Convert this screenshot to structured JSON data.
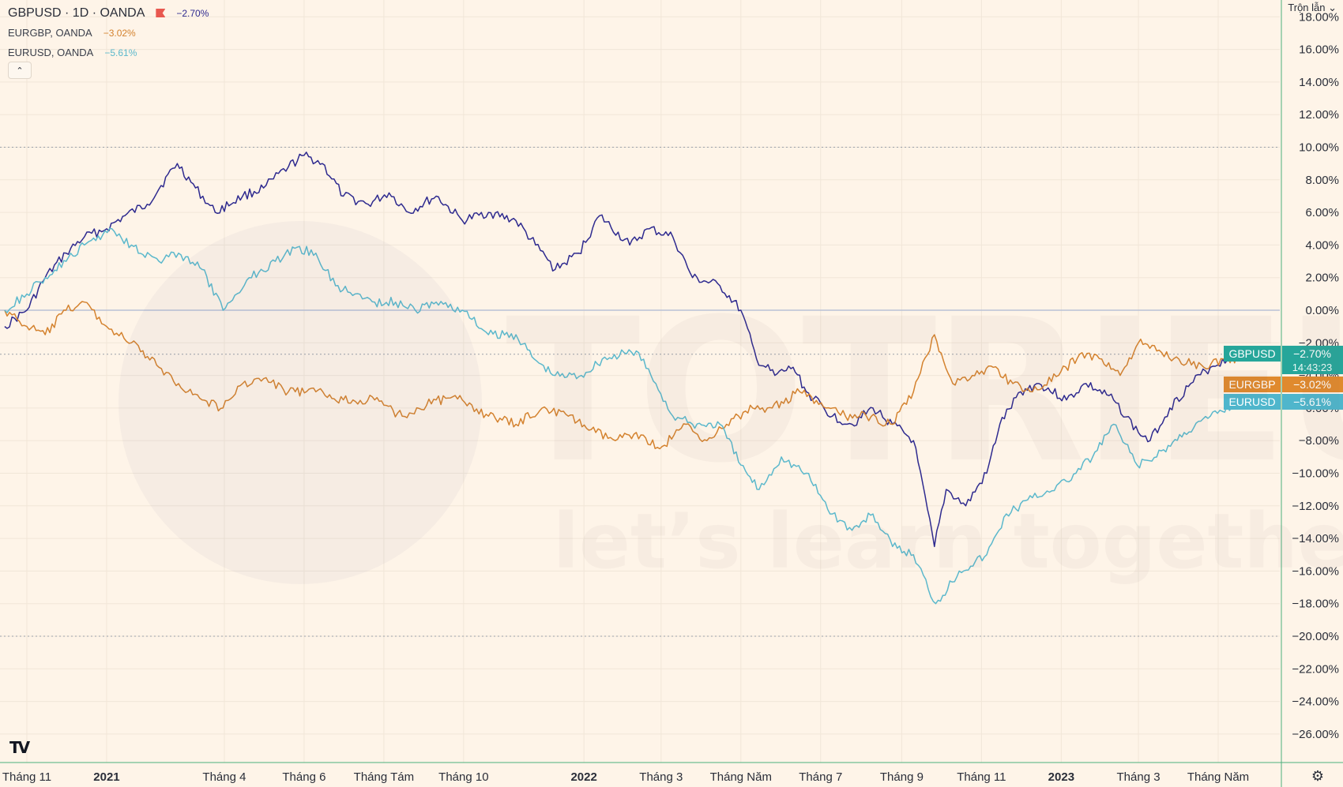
{
  "header": {
    "main_symbol": "GBPUSD · 1D · OANDA",
    "main_change": "−2.70%",
    "series_rows": [
      {
        "name": "EURGBP, OANDA",
        "change": "−3.02%"
      },
      {
        "name": "EURUSD, OANDA",
        "change": "−5.61%"
      }
    ],
    "collapse_label": "⌃"
  },
  "scale_mode": "Trộn lẫn ⌄",
  "watermark": {
    "brand": "TOTRIEU",
    "tagline": "let’s learn together"
  },
  "footer": {
    "logo": "TV",
    "settings_icon": "gear-icon"
  },
  "chart_data": {
    "type": "line",
    "x_tick_labels": [
      "Tháng 11",
      "2021",
      "Tháng 4",
      "Tháng 6",
      "Tháng Tám",
      "Tháng 10",
      "2022",
      "Tháng 3",
      "Tháng Năm",
      "Tháng 7",
      "Tháng 9",
      "Tháng 11",
      "2023",
      "Tháng 3",
      "Tháng Năm"
    ],
    "x_tick_dates": [
      "2020-11-01",
      "2021-01-01",
      "2021-04-01",
      "2021-06-01",
      "2021-08-01",
      "2021-10-01",
      "2022-01-01",
      "2022-03-01",
      "2022-05-01",
      "2022-07-01",
      "2022-09-01",
      "2022-11-01",
      "2023-01-01",
      "2023-03-01",
      "2023-05-01"
    ],
    "y_ticks": [
      18,
      16,
      14,
      12,
      10,
      8,
      6,
      4,
      2,
      0,
      -2,
      -4,
      -6,
      -8,
      -10,
      -12,
      -14,
      -16,
      -18,
      -20,
      -22,
      -24,
      -26
    ],
    "y_tick_labels": [
      "18.00%",
      "16.00%",
      "14.00%",
      "12.00%",
      "10.00%",
      "8.00%",
      "6.00%",
      "4.00%",
      "2.00%",
      "0.00%",
      "−2.00%",
      "−4.00%",
      "−6.00%",
      "−8.00%",
      "−10.00%",
      "−12.00%",
      "−14.00%",
      "−16.00%",
      "−18.00%",
      "−20.00%",
      "−22.00%",
      "−24.00%",
      "−26.00%"
    ],
    "y_unit": "%",
    "reference_lines": [
      10,
      0,
      -2.7,
      -20
    ],
    "countdown": "14:43:23",
    "series": [
      {
        "name": "GBPUSD",
        "color": "#2e2a8f",
        "last_label": "−2.70%",
        "points": [
          [
            "2020-10-15",
            -1
          ],
          [
            "2020-11-01",
            0
          ],
          [
            "2020-11-15",
            2
          ],
          [
            "2020-12-01",
            3.5
          ],
          [
            "2020-12-15",
            4.5
          ],
          [
            "2021-01-01",
            5
          ],
          [
            "2021-01-15",
            5.8
          ],
          [
            "2021-02-01",
            6.5
          ],
          [
            "2021-02-24",
            9
          ],
          [
            "2021-03-10",
            7.5
          ],
          [
            "2021-03-25",
            6
          ],
          [
            "2021-04-15",
            7
          ],
          [
            "2021-05-01",
            7.5
          ],
          [
            "2021-05-20",
            8.8
          ],
          [
            "2021-06-01",
            9.5
          ],
          [
            "2021-06-15",
            9
          ],
          [
            "2021-07-01",
            7
          ],
          [
            "2021-07-20",
            6.5
          ],
          [
            "2021-08-05",
            7.2
          ],
          [
            "2021-08-20",
            6
          ],
          [
            "2021-09-10",
            7
          ],
          [
            "2021-09-30",
            5.5
          ],
          [
            "2021-10-20",
            6
          ],
          [
            "2021-11-10",
            5.5
          ],
          [
            "2021-11-25",
            4
          ],
          [
            "2021-12-10",
            2.5
          ],
          [
            "2021-12-28",
            3.5
          ],
          [
            "2022-01-13",
            5.8
          ],
          [
            "2022-02-05",
            4
          ],
          [
            "2022-02-20",
            5
          ],
          [
            "2022-03-10",
            4.5
          ],
          [
            "2022-03-25",
            2
          ],
          [
            "2022-04-15",
            1.5
          ],
          [
            "2022-05-01",
            0
          ],
          [
            "2022-05-13",
            -3
          ],
          [
            "2022-05-27",
            -4
          ],
          [
            "2022-06-10",
            -3.5
          ],
          [
            "2022-06-20",
            -5
          ],
          [
            "2022-07-10",
            -6.5
          ],
          [
            "2022-07-25",
            -7
          ],
          [
            "2022-08-10",
            -6
          ],
          [
            "2022-08-25",
            -7
          ],
          [
            "2022-09-10",
            -8
          ],
          [
            "2022-09-26",
            -14.5
          ],
          [
            "2022-10-05",
            -11
          ],
          [
            "2022-10-20",
            -12
          ],
          [
            "2022-11-05",
            -10
          ],
          [
            "2022-11-15",
            -7
          ],
          [
            "2022-12-01",
            -5
          ],
          [
            "2022-12-15",
            -4.5
          ],
          [
            "2023-01-05",
            -5.5
          ],
          [
            "2023-01-20",
            -4.5
          ],
          [
            "2023-02-10",
            -5.5
          ],
          [
            "2023-03-01",
            -7.5
          ],
          [
            "2023-03-10",
            -8
          ],
          [
            "2023-03-25",
            -6
          ],
          [
            "2023-04-10",
            -4.5
          ],
          [
            "2023-04-25",
            -3.5
          ],
          [
            "2023-05-10",
            -2.9
          ],
          [
            "2023-05-17",
            -2.7
          ]
        ]
      },
      {
        "name": "EURGBP",
        "color": "#d4822e",
        "last_label": "−3.02%",
        "points": [
          [
            "2020-10-15",
            0
          ],
          [
            "2020-11-01",
            -1
          ],
          [
            "2020-11-15",
            -1.5
          ],
          [
            "2020-12-01",
            0
          ],
          [
            "2020-12-15",
            0.5
          ],
          [
            "2021-01-01",
            -1
          ],
          [
            "2021-01-20",
            -2
          ],
          [
            "2021-02-10",
            -3.5
          ],
          [
            "2021-02-25",
            -4.5
          ],
          [
            "2021-03-15",
            -5.5
          ],
          [
            "2021-03-31",
            -6
          ],
          [
            "2021-04-15",
            -4.5
          ],
          [
            "2021-05-01",
            -4.2
          ],
          [
            "2021-05-20",
            -5
          ],
          [
            "2021-06-10",
            -5
          ],
          [
            "2021-07-01",
            -5.5
          ],
          [
            "2021-07-25",
            -5.5
          ],
          [
            "2021-08-15",
            -6.5
          ],
          [
            "2021-09-10",
            -5.5
          ],
          [
            "2021-09-30",
            -5.5
          ],
          [
            "2021-10-20",
            -6.5
          ],
          [
            "2021-11-10",
            -7
          ],
          [
            "2021-11-30",
            -6
          ],
          [
            "2021-12-20",
            -6.5
          ],
          [
            "2022-01-10",
            -7.5
          ],
          [
            "2022-01-25",
            -8
          ],
          [
            "2022-02-10",
            -7.5
          ],
          [
            "2022-02-28",
            -8.5
          ],
          [
            "2022-03-20",
            -7
          ],
          [
            "2022-04-05",
            -8
          ],
          [
            "2022-04-20",
            -7
          ],
          [
            "2022-05-10",
            -6
          ],
          [
            "2022-05-25",
            -6
          ],
          [
            "2022-06-15",
            -5
          ],
          [
            "2022-07-05",
            -6
          ],
          [
            "2022-07-20",
            -6.5
          ],
          [
            "2022-08-05",
            -6.5
          ],
          [
            "2022-08-25",
            -7
          ],
          [
            "2022-09-10",
            -5
          ],
          [
            "2022-09-26",
            -1.5
          ],
          [
            "2022-10-10",
            -4.5
          ],
          [
            "2022-10-25",
            -4
          ],
          [
            "2022-11-10",
            -3.5
          ],
          [
            "2022-11-25",
            -4.5
          ],
          [
            "2022-12-10",
            -5
          ],
          [
            "2022-12-30",
            -4
          ],
          [
            "2023-01-15",
            -2.7
          ],
          [
            "2023-02-01",
            -3
          ],
          [
            "2023-02-15",
            -4
          ],
          [
            "2023-03-01",
            -2
          ],
          [
            "2023-03-15",
            -2.5
          ],
          [
            "2023-04-01",
            -3
          ],
          [
            "2023-04-20",
            -3.5
          ],
          [
            "2023-05-05",
            -3
          ],
          [
            "2023-05-17",
            -3.02
          ]
        ]
      },
      {
        "name": "EURUSD",
        "color": "#5bb8cc",
        "last_label": "−5.61%",
        "points": [
          [
            "2020-10-15",
            0
          ],
          [
            "2020-11-01",
            1
          ],
          [
            "2020-11-15",
            2
          ],
          [
            "2020-12-01",
            3
          ],
          [
            "2020-12-15",
            4
          ],
          [
            "2021-01-05",
            5
          ],
          [
            "2021-01-20",
            4
          ],
          [
            "2021-02-10",
            3
          ],
          [
            "2021-02-25",
            3.5
          ],
          [
            "2021-03-15",
            2.5
          ],
          [
            "2021-03-31",
            0
          ],
          [
            "2021-04-20",
            2
          ],
          [
            "2021-05-10",
            3
          ],
          [
            "2021-05-25",
            3.8
          ],
          [
            "2021-06-10",
            3.5
          ],
          [
            "2021-06-25",
            1.5
          ],
          [
            "2021-07-10",
            1
          ],
          [
            "2021-07-25",
            0.5
          ],
          [
            "2021-08-10",
            0.5
          ],
          [
            "2021-08-25",
            0
          ],
          [
            "2021-09-10",
            0.5
          ],
          [
            "2021-09-30",
            0
          ],
          [
            "2021-10-20",
            -1.5
          ],
          [
            "2021-11-10",
            -1.5
          ],
          [
            "2021-11-24",
            -3
          ],
          [
            "2021-12-10",
            -4
          ],
          [
            "2021-12-30",
            -4
          ],
          [
            "2022-01-15",
            -3
          ],
          [
            "2022-02-10",
            -2.5
          ],
          [
            "2022-02-25",
            -4.5
          ],
          [
            "2022-03-10",
            -6.5
          ],
          [
            "2022-03-25",
            -7
          ],
          [
            "2022-04-15",
            -7
          ],
          [
            "2022-05-01",
            -9.5
          ],
          [
            "2022-05-15",
            -11
          ],
          [
            "2022-06-01",
            -9
          ],
          [
            "2022-06-20",
            -10
          ],
          [
            "2022-07-10",
            -12.5
          ],
          [
            "2022-07-25",
            -13.5
          ],
          [
            "2022-08-10",
            -12.5
          ],
          [
            "2022-08-25",
            -14.5
          ],
          [
            "2022-09-10",
            -15
          ],
          [
            "2022-09-27",
            -18
          ],
          [
            "2022-10-15",
            -16
          ],
          [
            "2022-11-05",
            -15
          ],
          [
            "2022-11-20",
            -12.5
          ],
          [
            "2022-12-10",
            -11.5
          ],
          [
            "2023-01-05",
            -10.5
          ],
          [
            "2023-01-25",
            -9
          ],
          [
            "2023-02-10",
            -7
          ],
          [
            "2023-02-28",
            -9.5
          ],
          [
            "2023-03-15",
            -9
          ],
          [
            "2023-04-05",
            -7.5
          ],
          [
            "2023-04-25",
            -6.5
          ],
          [
            "2023-05-17",
            -5.61
          ]
        ]
      }
    ],
    "grid": true,
    "legend_position": "top-left"
  }
}
